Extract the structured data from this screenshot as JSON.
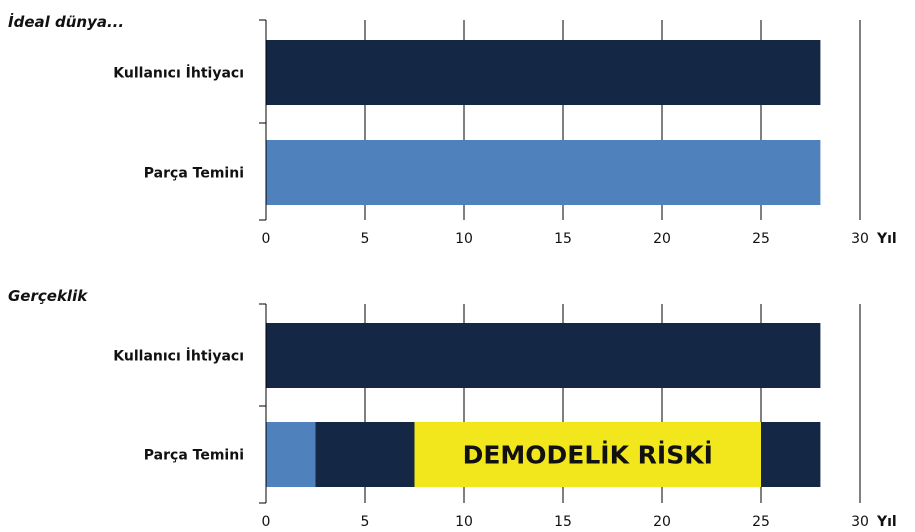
{
  "chart_data": [
    {
      "type": "bar",
      "orientation": "horizontal",
      "stacked": true,
      "title": "İdeal dünya...",
      "categories": [
        "Kullanıcı İhtiyacı",
        "Parça Temini"
      ],
      "xlim": [
        0,
        30
      ],
      "xticks": [
        0,
        5,
        10,
        15,
        20,
        25,
        30
      ],
      "xunit": "Yıl",
      "grid": true,
      "bars": [
        {
          "category": "Kullanıcı İhtiyacı",
          "segments": [
            {
              "start": 0,
              "end": 28,
              "color": "#142846"
            }
          ]
        },
        {
          "category": "Parça Temini",
          "segments": [
            {
              "start": 0,
              "end": 28,
              "color": "#4f82bd"
            }
          ]
        }
      ]
    },
    {
      "type": "bar",
      "orientation": "horizontal",
      "stacked": true,
      "title": "Gerçeklik",
      "categories": [
        "Kullanıcı İhtiyacı",
        "Parça Temini"
      ],
      "xlim": [
        0,
        30
      ],
      "xticks": [
        0,
        5,
        10,
        15,
        20,
        25,
        30
      ],
      "xunit": "Yıl",
      "grid": true,
      "bars": [
        {
          "category": "Kullanıcı İhtiyacı",
          "segments": [
            {
              "start": 0,
              "end": 28,
              "color": "#142846"
            }
          ]
        },
        {
          "category": "Parça Temini",
          "segments": [
            {
              "start": 0,
              "end": 2.5,
              "color": "#4f82bd"
            },
            {
              "start": 2.5,
              "end": 7.5,
              "color": "#142846"
            },
            {
              "start": 7.5,
              "end": 25,
              "color": "#f2e71c",
              "label": "DEMODELİK RİSKİ"
            },
            {
              "start": 25,
              "end": 28,
              "color": "#142846"
            }
          ]
        }
      ]
    }
  ]
}
